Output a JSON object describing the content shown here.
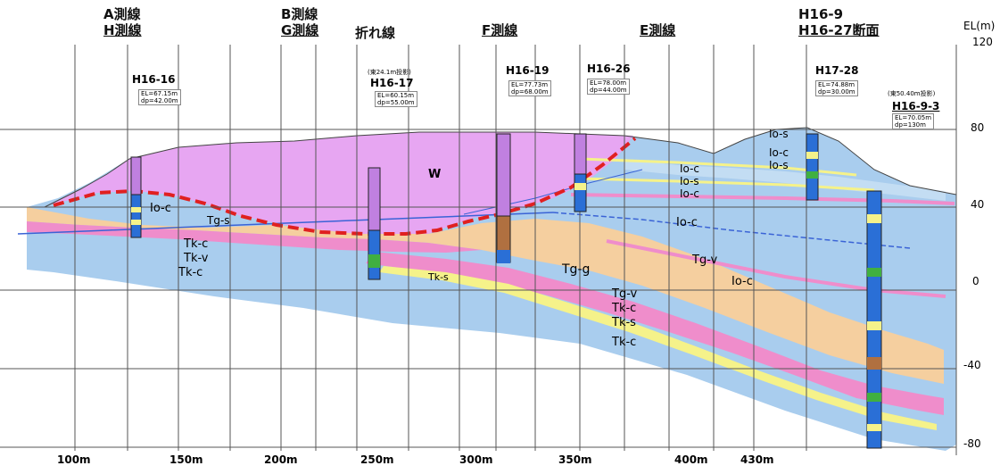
{
  "headers": {
    "a_line_1": "A測線",
    "a_line_2": "H測線",
    "b_line_1": "B測線",
    "b_line_2": "G測線",
    "folded": "折れ線",
    "f_line": "F測線",
    "e_line": "E測線",
    "h169_1": "H16-9",
    "h169_2": "H16-27断面"
  },
  "el_axis": {
    "label": "EL(m)",
    "ticks": [
      "120",
      "80",
      "40",
      "0",
      "-40",
      "-80"
    ]
  },
  "x_axis": {
    "ticks": [
      "100m",
      "150m",
      "200m",
      "250m",
      "300m",
      "350m",
      "400m",
      "430m"
    ]
  },
  "boreholes": [
    {
      "name": "H16-16",
      "info1": "EL=67.15m",
      "info2": "dp=42.00m",
      "note": ""
    },
    {
      "name": "H16-17",
      "info1": "EL=60.15m",
      "info2": "dp=55.00m",
      "note": "(東24.1m投影)"
    },
    {
      "name": "H16-19",
      "info1": "EL=77.73m",
      "info2": "dp=68.00m",
      "note": ""
    },
    {
      "name": "H16-26",
      "info1": "EL=78.00m",
      "info2": "dp=44.00m",
      "note": ""
    },
    {
      "name": "H17-28",
      "info1": "EL=74.88m",
      "info2": "dp=30.00m",
      "note": ""
    },
    {
      "name": "H16-9-3",
      "info1": "EL=70.05m",
      "info2": "dp=130m",
      "note": "(東50.40m投影)"
    }
  ],
  "layers": {
    "W": "W",
    "Io_c": "Io-c",
    "Io_s": "Io-s",
    "Tk_c": "Tk-c",
    "Tk_v": "Tk-v",
    "Tk_s": "Tk-s",
    "Tg_g": "Tg-g",
    "Tg_v": "Tg-v",
    "Tg_s": "Tg-s"
  },
  "colors": {
    "W": "#e7a6f2",
    "Io": "#a9cdee",
    "Tg": "#f5cf9f",
    "Tk_v": "#ef8dcb",
    "Tk_s": "#f5f28a",
    "fault": "#e02020",
    "blue_line": "#3a63d6"
  }
}
